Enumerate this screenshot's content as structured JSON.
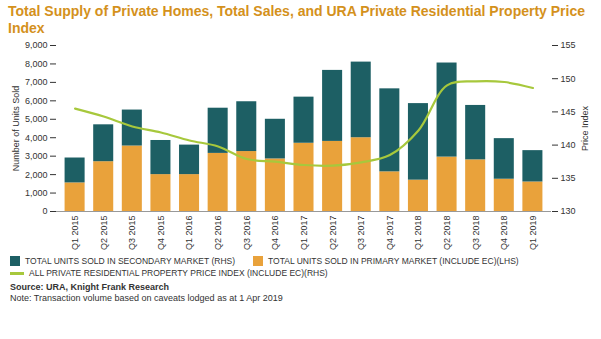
{
  "chart_data": {
    "type": "bar",
    "title": "Total Supply of Private Homes, Total Sales, and URA Private Residential Property Price Index",
    "categories": [
      "Q1 2015",
      "Q2 2015",
      "Q3 2015",
      "Q4 2015",
      "Q1 2016",
      "Q2 2016",
      "Q3 2016",
      "Q4 2016",
      "Q1 2017",
      "Q2 2017",
      "Q3 2017",
      "Q4 2017",
      "Q1 2018",
      "Q2 2018",
      "Q3 2018",
      "Q4 2018",
      "Q1 2019"
    ],
    "series": [
      {
        "name": "TOTAL UNITS SOLD IN SECONDARY MARKET (RHS)",
        "type": "bar",
        "color": "#1d5f64",
        "values": [
          1350,
          2000,
          1950,
          1850,
          1600,
          2450,
          2700,
          2150,
          2500,
          3850,
          4100,
          4500,
          4150,
          5100,
          2950,
          2200,
          1700
        ]
      },
      {
        "name": "TOTAL UNITS SOLD IN PRIMARY MARKET (INCLUDE EC)(LHS)",
        "type": "bar",
        "color": "#e9a23b",
        "values": [
          1550,
          2700,
          3550,
          2000,
          2000,
          3150,
          3250,
          2850,
          3700,
          3800,
          4000,
          2150,
          1700,
          2950,
          2800,
          1750,
          1600
        ]
      },
      {
        "name": "ALL PRIVATE RESIDENTIAL PROPERTY PRICE INDEX (INCLUDE EC)(RHS)",
        "type": "line",
        "axis": "y2",
        "color": "#a7c83c",
        "values": [
          145.5,
          144.3,
          142.8,
          141.9,
          140.7,
          139.8,
          137.9,
          137.5,
          137.0,
          136.9,
          137.4,
          138.5,
          142.2,
          149.0,
          149.6,
          149.5,
          148.6
        ]
      }
    ],
    "stacked": true,
    "legend": "bottom",
    "ylabel": "Number of Units Sold",
    "y2label": "Price Index",
    "ylim": [
      0,
      9000
    ],
    "yticks": [
      0,
      {
        "value": 1000,
        "label": "1,000"
      },
      {
        "value": 2000,
        "label": "2,000"
      },
      {
        "value": 3000,
        "label": "3,000"
      },
      {
        "value": 4000,
        "label": "4,000"
      },
      {
        "value": 5000,
        "label": "5,000"
      },
      {
        "value": 6000,
        "label": "6,000"
      },
      {
        "value": 7000,
        "label": "7,000"
      },
      {
        "value": 8000,
        "label": "8,000"
      },
      {
        "value": 9000,
        "label": "9,000"
      }
    ],
    "y2lim": [
      130,
      155
    ],
    "y2ticks": [
      130,
      135,
      140,
      145,
      150,
      155
    ],
    "source": "Source: URA, Knight Frank Research",
    "note": "Note: Transaction volume based on caveats lodged as at 1 Apr 2019"
  }
}
